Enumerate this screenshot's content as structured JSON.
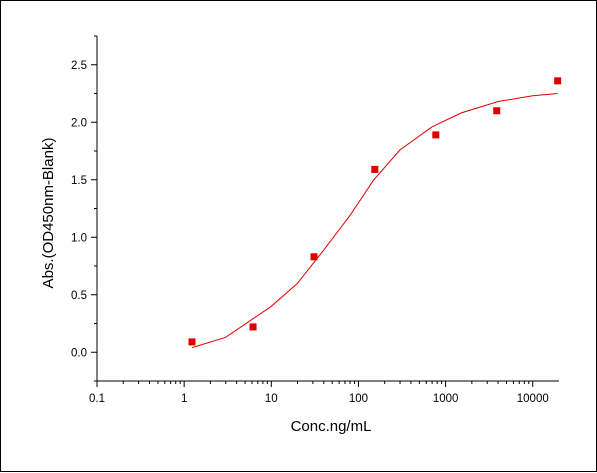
{
  "chart_data": {
    "type": "scatter",
    "title": "",
    "xlabel": "Conc.ng/mL",
    "ylabel": "Abs.(OD450nm-Blank)",
    "x_scale": "log",
    "xlim": [
      0.1,
      20000
    ],
    "ylim": [
      -0.25,
      2.75
    ],
    "x_ticks": [
      {
        "value": 0.1,
        "label": "0.1"
      },
      {
        "value": 1,
        "label": "1"
      },
      {
        "value": 10,
        "label": "10"
      },
      {
        "value": 100,
        "label": "100"
      },
      {
        "value": 1000,
        "label": "1000"
      },
      {
        "value": 10000,
        "label": "10000"
      }
    ],
    "y_ticks": [
      {
        "value": 0.0,
        "label": "0.0"
      },
      {
        "value": 0.5,
        "label": "0.5"
      },
      {
        "value": 1.0,
        "label": "1.0"
      },
      {
        "value": 1.5,
        "label": "1.5"
      },
      {
        "value": 2.0,
        "label": "2.0"
      },
      {
        "value": 2.5,
        "label": "2.5"
      }
    ],
    "grid": false,
    "legend": "none",
    "series": [
      {
        "type": "scatter",
        "marker": "square",
        "color": "#e00000",
        "points": [
          {
            "x": 1.23,
            "y": 0.09
          },
          {
            "x": 6.17,
            "y": 0.22
          },
          {
            "x": 30.9,
            "y": 0.83
          },
          {
            "x": 154,
            "y": 1.59
          },
          {
            "x": 772,
            "y": 1.89
          },
          {
            "x": 3860,
            "y": 2.1
          },
          {
            "x": 19300,
            "y": 2.36
          }
        ]
      },
      {
        "type": "line",
        "fit": "4PL",
        "color": "#e00000",
        "curve_points": [
          {
            "x": 1.23,
            "y": 0.04
          },
          {
            "x": 3,
            "y": 0.13
          },
          {
            "x": 10,
            "y": 0.4
          },
          {
            "x": 20,
            "y": 0.6
          },
          {
            "x": 40,
            "y": 0.89
          },
          {
            "x": 80,
            "y": 1.19
          },
          {
            "x": 150,
            "y": 1.5
          },
          {
            "x": 300,
            "y": 1.76
          },
          {
            "x": 700,
            "y": 1.96
          },
          {
            "x": 1500,
            "y": 2.08
          },
          {
            "x": 4000,
            "y": 2.18
          },
          {
            "x": 10000,
            "y": 2.23
          },
          {
            "x": 19300,
            "y": 2.25
          }
        ]
      }
    ]
  }
}
